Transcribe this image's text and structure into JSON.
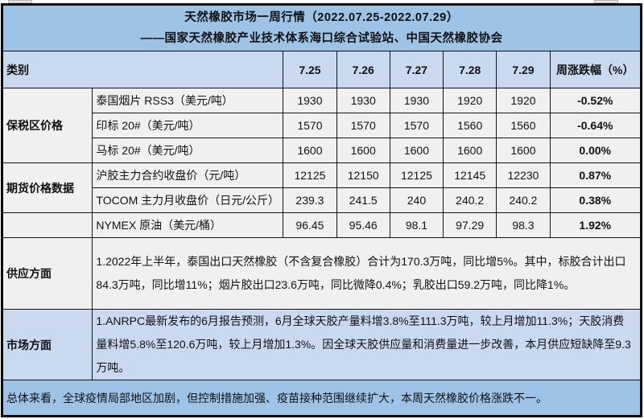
{
  "header": {
    "title_line1": "天然橡胶市场一周行情（2022.07.25-2022.07.29）",
    "title_line2": "——国家天然橡胶产业技术体系海口综合试验站、中国天然橡胶协会"
  },
  "colors": {
    "title_band_bg": "#9dc3e6",
    "column_header_bg": "#c9daf0",
    "data_cell_bg": "#f0f0f0",
    "market_section_bg": "#c9daf0",
    "summary_band_bg": "#9dc3e6",
    "border": "#141414"
  },
  "table": {
    "category_header": "类别",
    "date_headers": [
      "7.25",
      "7.26",
      "7.27",
      "7.28",
      "7.29"
    ],
    "change_header": "周涨跌幅（%）",
    "groups": [
      {
        "label": "保税区价格",
        "rows": [
          {
            "item": "泰国烟片 RSS3（美元/吨）",
            "values": [
              "1930",
              "1930",
              "1930",
              "1920",
              "1920"
            ],
            "change": "-0.52%"
          },
          {
            "item": "印标 20#（美元/吨）",
            "values": [
              "1570",
              "1570",
              "1570",
              "1560",
              "1560"
            ],
            "change": "-0.64%"
          },
          {
            "item": "马标 20#（美元/吨）",
            "values": [
              "1600",
              "1600",
              "1600",
              "1600",
              "1600"
            ],
            "change": "0.00%"
          }
        ]
      },
      {
        "label": "期货价格数据",
        "rows": [
          {
            "item": "沪胶主力合约收盘价（元/吨）",
            "values": [
              "12125",
              "12150",
              "12125",
              "12145",
              "12230"
            ],
            "change": "0.87%"
          },
          {
            "item": "TOCOM 主力月收盘价（日元/公斤）",
            "values": [
              "239.3",
              "241.5",
              "240",
              "240.2",
              "240.2"
            ],
            "change": "0.38%"
          }
        ]
      },
      {
        "label": "",
        "rows": [
          {
            "item": "NYMEX 原油（美元/桶）",
            "values": [
              "96.45",
              "95.46",
              "98.1",
              "97.29",
              "98.3"
            ],
            "change": "1.92%"
          }
        ]
      }
    ],
    "sections": [
      {
        "label": "供应方面",
        "text": "1.2022年上半年，泰国出口天然橡胶（不含复合橡胶）合计为170.3万吨，同比增5%。其中，标胶合计出口84.3万吨，同比增11%；烟片胶出口23.6万吨，同比微降0.4%；乳胶出口59.2万吨，同比降1%。"
      },
      {
        "label": "市场方面",
        "text": "1.ANRPC最新发布的6月报告预测，6月全球天胶产量料增3.8%至111.3万吨，较上月增加11.3%；天胶消费量料增5.8%至120.6万吨，较上月增加1.3%。因全球天胶供应量和消费量进一步改善，本月供应短缺降至9.3万吨。"
      }
    ],
    "summary": "总体来看，全球疫情局部地区加剧，但控制措施加强、疫苗接种范围继续扩大，本周天然橡胶价格涨跌不一。"
  }
}
